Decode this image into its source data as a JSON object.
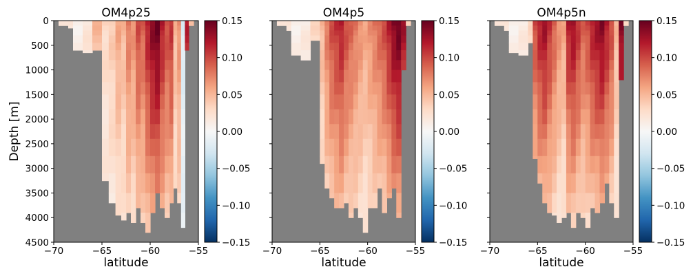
{
  "chart_data": [
    {
      "type": "heatmap",
      "title": "OM4p25",
      "xlabel": "latitude",
      "ylabel": "Depth [m]",
      "xlim": [
        -70,
        -55
      ],
      "ylim": [
        4500,
        0
      ],
      "xticks": [
        "−70",
        "−65",
        "−60",
        "−55"
      ],
      "yticks": [
        "0",
        "500",
        "1000",
        "1500",
        "2000",
        "2500",
        "3000",
        "3500",
        "4000",
        "4500"
      ],
      "colormap": "RdBu_r",
      "masked_color": "#808080",
      "colorbar": {
        "vmin": -0.15,
        "vmax": 0.15,
        "ticks": [
          "0.15",
          "0.10",
          "0.05",
          "0.00",
          "−0.05",
          "−0.10",
          "−0.15"
        ]
      },
      "latitude_edges": [
        -69.5,
        -68.5,
        -68.0,
        -67.0,
        -66.0,
        -65.0,
        -64.3,
        -63.6,
        -63.0,
        -62.5,
        -62.0,
        -61.5,
        -61.0,
        -60.5,
        -60.0,
        -59.5,
        -59.0,
        -58.5,
        -58.0,
        -57.6,
        -57.2,
        -56.8,
        -56.4,
        -56.0,
        -55.5
      ],
      "bottom_depth": [
        100,
        150,
        600,
        650,
        600,
        3250,
        3700,
        3950,
        4050,
        3900,
        4100,
        3800,
        4100,
        4300,
        3900,
        3500,
        3800,
        4000,
        3700,
        3400,
        3700,
        4200,
        600,
        100
      ],
      "column_values": [
        0.02,
        0.015,
        0.01,
        0.02,
        0.05,
        0.03,
        0.04,
        0.06,
        0.05,
        0.08,
        0.07,
        0.1,
        0.09,
        0.12,
        0.14,
        0.15,
        0.12,
        0.1,
        0.11,
        0.05,
        0.07,
        -0.02,
        0.12,
        0.04
      ],
      "value_decay_with_depth": 0.7
    },
    {
      "type": "heatmap",
      "title": "OM4p5",
      "xlabel": "latitude",
      "xlim": [
        -70,
        -55
      ],
      "ylim": [
        4500,
        0
      ],
      "xticks": [
        "−70",
        "−65",
        "−60",
        "−55"
      ],
      "colormap": "RdBu_r",
      "masked_color": "#808080",
      "colorbar": {
        "vmin": -0.15,
        "vmax": 0.15,
        "ticks": [
          "0.15",
          "0.10",
          "0.05",
          "0.00",
          "−0.05",
          "−0.10",
          "−0.15"
        ]
      },
      "latitude_edges": [
        -69.5,
        -68.5,
        -68.0,
        -67.0,
        -66.0,
        -65.0,
        -64.5,
        -64.0,
        -63.5,
        -63.0,
        -62.5,
        -62.0,
        -61.5,
        -61.0,
        -60.5,
        -60.0,
        -59.5,
        -59.0,
        -58.5,
        -58.0,
        -57.5,
        -57.0,
        -56.5,
        -56.0,
        -55.5
      ],
      "bottom_depth": [
        100,
        200,
        700,
        800,
        400,
        2900,
        3400,
        3600,
        3800,
        3800,
        3700,
        4000,
        3800,
        4000,
        4300,
        3800,
        3800,
        3400,
        3900,
        3600,
        3400,
        4000,
        1000,
        100
      ],
      "column_values": [
        0.02,
        0.015,
        0.01,
        0.015,
        0.03,
        0.05,
        0.08,
        0.1,
        0.11,
        0.12,
        0.1,
        0.09,
        0.08,
        0.07,
        0.06,
        0.07,
        0.08,
        0.09,
        0.1,
        0.12,
        0.14,
        0.15,
        0.13,
        0.03
      ],
      "value_decay_with_depth": 0.75
    },
    {
      "type": "heatmap",
      "title": "OM4p5n",
      "xlabel": "latitude",
      "xlim": [
        -70,
        -55
      ],
      "ylim": [
        4500,
        0
      ],
      "xticks": [
        "−70",
        "−65",
        "−60",
        "−55"
      ],
      "colormap": "RdBu_r",
      "masked_color": "#808080",
      "colorbar": {
        "vmin": -0.15,
        "vmax": 0.15,
        "ticks": [
          "0.15",
          "0.10",
          "0.05",
          "0.00",
          "−0.05",
          "−0.10",
          "−0.15"
        ]
      },
      "latitude_edges": [
        -69.5,
        -68.5,
        -68.0,
        -67.0,
        -66.0,
        -65.5,
        -65.0,
        -64.5,
        -64.0,
        -63.5,
        -63.0,
        -62.5,
        -62.0,
        -61.5,
        -61.0,
        -60.5,
        -60.0,
        -59.5,
        -59.0,
        -58.5,
        -58.0,
        -57.5,
        -57.0,
        -56.5,
        -56.0,
        -55.5
      ],
      "bottom_depth": [
        100,
        200,
        650,
        700,
        450,
        2800,
        3300,
        3700,
        3900,
        3950,
        4100,
        4000,
        3900,
        4200,
        3900,
        4000,
        4200,
        3800,
        3900,
        3700,
        3300,
        3700,
        4000,
        1200,
        100
      ],
      "column_values": [
        0.02,
        0.015,
        0.01,
        0.015,
        0.03,
        0.1,
        0.12,
        0.13,
        0.11,
        0.09,
        0.07,
        0.06,
        0.12,
        0.13,
        0.11,
        0.09,
        0.1,
        0.12,
        0.13,
        0.14,
        0.12,
        0.1,
        0.05,
        0.14,
        0.03
      ],
      "value_decay_with_depth": 0.8
    }
  ]
}
